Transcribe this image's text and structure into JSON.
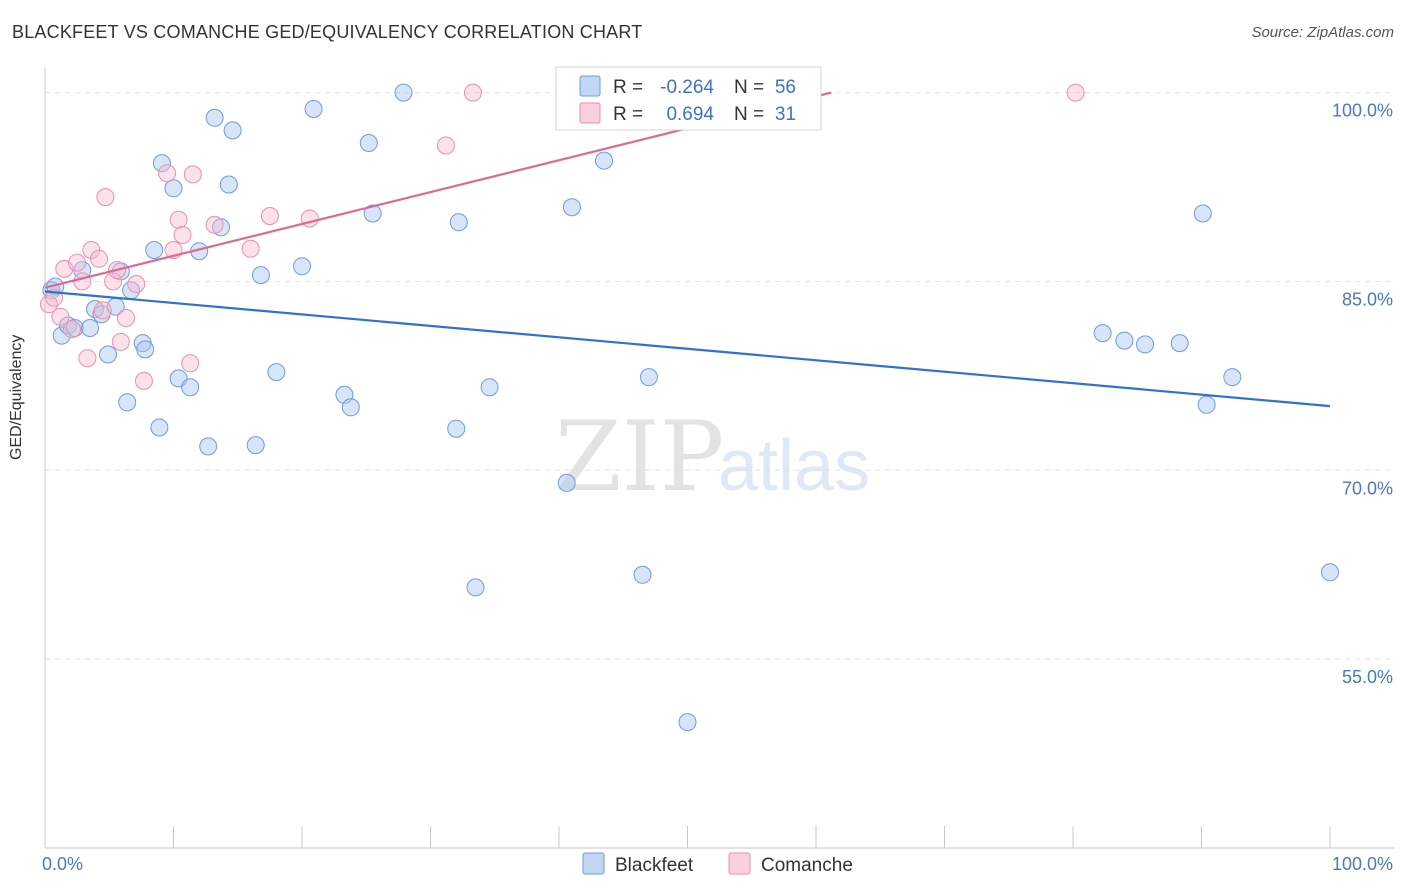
{
  "chart_data": {
    "type": "scatter",
    "title": "BLACKFEET VS COMANCHE GED/EQUIVALENCY CORRELATION CHART",
    "source": "Source: ZipAtlas.com",
    "xlabel": "",
    "ylabel": "GED/Equivalency",
    "xlim": [
      0,
      100
    ],
    "ylim": [
      40,
      101
    ],
    "x_tick_labels": {
      "left": "0.0%",
      "right": "100.0%"
    },
    "y_ticks": [
      {
        "value": 100,
        "label": "100.0%"
      },
      {
        "value": 85,
        "label": "85.0%"
      },
      {
        "value": 70,
        "label": "70.0%"
      },
      {
        "value": 55,
        "label": "55.0%"
      }
    ],
    "watermark": {
      "zip": "ZIP",
      "atlas": "atlas"
    },
    "legend": {
      "r_label": "R =",
      "n_label": "N =",
      "entries": [
        {
          "name": "Blackfeet",
          "r": "-0.264",
          "n": "56"
        },
        {
          "name": "Comanche",
          "r": "0.694",
          "n": "31"
        }
      ]
    },
    "series": [
      {
        "name": "Blackfeet",
        "color": "#a8c4ee",
        "stroke": "#6f9be0",
        "trend_color": "#2f72d0",
        "trend": [
          [
            0,
            84.2
          ],
          [
            100,
            75.1
          ]
        ],
        "points": [
          [
            0.5,
            84.3
          ],
          [
            0.8,
            84.6
          ],
          [
            1.3,
            80.7
          ],
          [
            1.8,
            81.5
          ],
          [
            2.3,
            81.3
          ],
          [
            2.9,
            85.9
          ],
          [
            3.5,
            81.3
          ],
          [
            3.9,
            82.8
          ],
          [
            4.4,
            82.4
          ],
          [
            4.9,
            79.2
          ],
          [
            5.5,
            83.0
          ],
          [
            5.9,
            85.8
          ],
          [
            6.4,
            75.4
          ],
          [
            6.7,
            84.3
          ],
          [
            7.6,
            80.1
          ],
          [
            7.8,
            79.6
          ],
          [
            8.5,
            87.5
          ],
          [
            8.9,
            73.4
          ],
          [
            9.1,
            94.4
          ],
          [
            10.0,
            92.4
          ],
          [
            10.4,
            77.3
          ],
          [
            11.3,
            76.6
          ],
          [
            12.0,
            87.4
          ],
          [
            12.7,
            71.9
          ],
          [
            13.2,
            98.0
          ],
          [
            13.7,
            89.3
          ],
          [
            14.3,
            92.7
          ],
          [
            14.6,
            97.0
          ],
          [
            16.4,
            72.0
          ],
          [
            16.8,
            85.5
          ],
          [
            18.0,
            77.8
          ],
          [
            20.0,
            86.2
          ],
          [
            20.9,
            98.7
          ],
          [
            23.3,
            76.0
          ],
          [
            23.8,
            75.0
          ],
          [
            25.2,
            96.0
          ],
          [
            25.5,
            90.4
          ],
          [
            27.9,
            100.0
          ],
          [
            32.0,
            73.3
          ],
          [
            32.2,
            89.7
          ],
          [
            33.5,
            60.7
          ],
          [
            34.6,
            76.6
          ],
          [
            40.6,
            69.0
          ],
          [
            41.0,
            90.9
          ],
          [
            43.5,
            94.6
          ],
          [
            46.5,
            61.7
          ],
          [
            47.0,
            77.4
          ],
          [
            50.0,
            50.0
          ],
          [
            82.3,
            80.9
          ],
          [
            84.0,
            80.3
          ],
          [
            85.6,
            80.0
          ],
          [
            88.3,
            80.1
          ],
          [
            90.1,
            90.4
          ],
          [
            90.4,
            75.2
          ],
          [
            92.4,
            77.4
          ],
          [
            100.0,
            61.9
          ]
        ]
      },
      {
        "name": "Comanche",
        "color": "#f7bdd0",
        "stroke": "#ea8fb0",
        "trend_color": "#e06890",
        "trend": [
          [
            0,
            84.5
          ],
          [
            61.2,
            100.0
          ]
        ],
        "points": [
          [
            0.3,
            83.2
          ],
          [
            0.7,
            83.7
          ],
          [
            1.2,
            82.2
          ],
          [
            1.5,
            86.0
          ],
          [
            2.1,
            81.2
          ],
          [
            2.5,
            86.5
          ],
          [
            2.9,
            85.0
          ],
          [
            3.3,
            78.9
          ],
          [
            3.6,
            87.5
          ],
          [
            4.2,
            86.8
          ],
          [
            4.5,
            82.7
          ],
          [
            4.7,
            91.7
          ],
          [
            5.3,
            85.0
          ],
          [
            5.6,
            85.9
          ],
          [
            5.9,
            80.2
          ],
          [
            6.3,
            82.1
          ],
          [
            7.1,
            84.8
          ],
          [
            7.7,
            77.1
          ],
          [
            9.5,
            93.6
          ],
          [
            10.0,
            87.5
          ],
          [
            10.4,
            89.9
          ],
          [
            10.7,
            88.7
          ],
          [
            11.3,
            78.5
          ],
          [
            11.5,
            93.5
          ],
          [
            13.2,
            89.5
          ],
          [
            16.0,
            87.6
          ],
          [
            17.5,
            90.2
          ],
          [
            20.6,
            90.0
          ],
          [
            31.2,
            95.8
          ],
          [
            33.3,
            100.0
          ],
          [
            80.2,
            100.0
          ]
        ]
      }
    ]
  }
}
